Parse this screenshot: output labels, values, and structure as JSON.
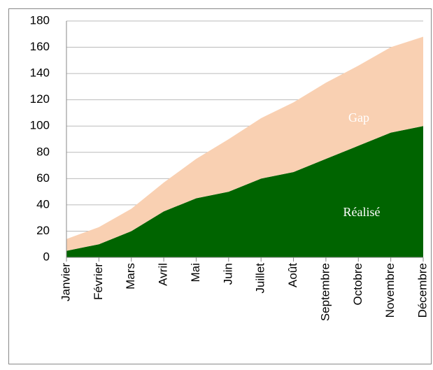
{
  "chart_data": {
    "type": "stacked_area",
    "categories": [
      "Janvier",
      "Février",
      "Mars",
      "Avril",
      "Mai",
      "Juin",
      "Juillet",
      "Août",
      "Septembre",
      "Octobre",
      "Novembre",
      "Décembre"
    ],
    "series": [
      {
        "name": "Réalisé",
        "color": "#006400",
        "values": [
          5,
          10,
          20,
          35,
          45,
          50,
          60,
          65,
          75,
          85,
          95,
          100
        ]
      },
      {
        "name": "Gap",
        "color": "#f9d0b2",
        "values": [
          9,
          13,
          17,
          22,
          30,
          40,
          46,
          53,
          58,
          61,
          65,
          68
        ]
      }
    ],
    "ylim": [
      0,
      180
    ],
    "yticks": [
      0,
      20,
      40,
      60,
      80,
      100,
      120,
      140,
      160,
      180
    ],
    "grid": true
  }
}
